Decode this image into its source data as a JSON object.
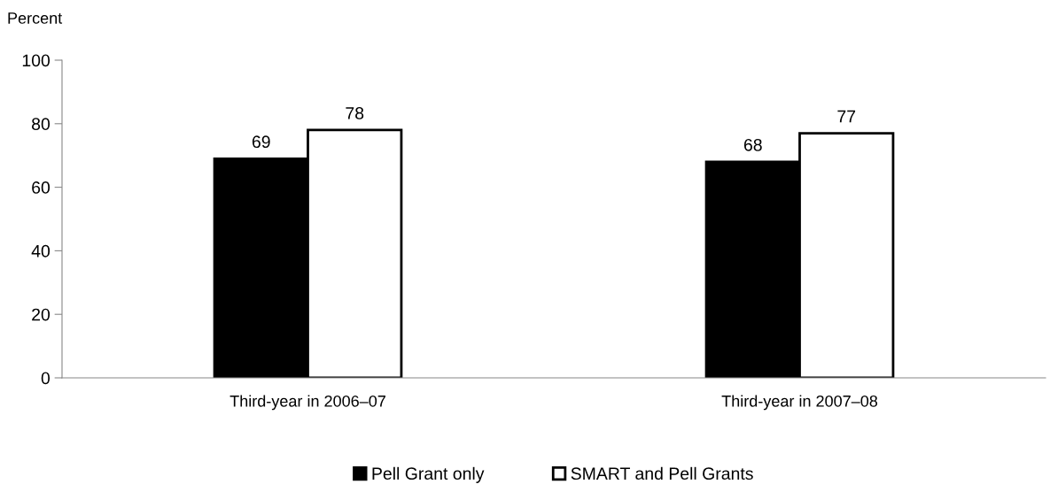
{
  "chart_data": {
    "type": "bar",
    "ylabel": "Percent",
    "categories": [
      "Third-year in 2006–07",
      "Third-year in 2007–08"
    ],
    "series": [
      {
        "name": "Pell Grant only",
        "color": "#000000",
        "values": [
          69,
          68
        ]
      },
      {
        "name": "SMART and Pell Grants",
        "color": "#ffffff",
        "values": [
          78,
          77
        ]
      }
    ],
    "ylim": [
      0,
      100
    ],
    "yticks": [
      0,
      20,
      40,
      60,
      80,
      100
    ],
    "grid": false,
    "legend": "bottom",
    "data_labels": true
  }
}
